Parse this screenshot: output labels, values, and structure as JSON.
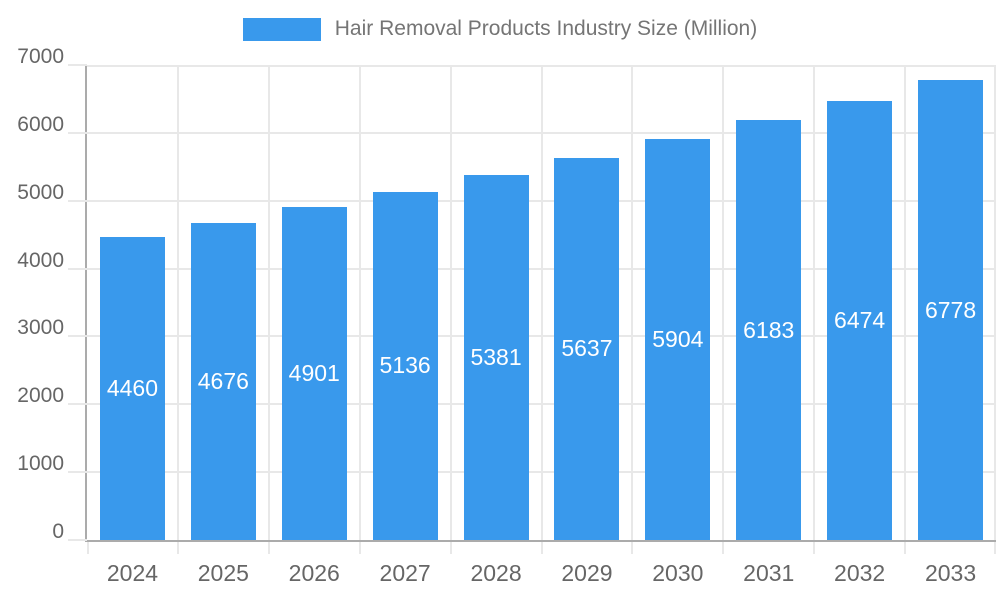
{
  "legend": {
    "series_label": "Hair Removal Products Industry Size (Million)"
  },
  "chart_data": {
    "type": "bar",
    "title": "Hair Removal Products Industry Size (Million)",
    "categories": [
      "2024",
      "2025",
      "2026",
      "2027",
      "2028",
      "2029",
      "2030",
      "2031",
      "2032",
      "2033"
    ],
    "values": [
      4460,
      4676,
      4901,
      5136,
      5381,
      5637,
      5904,
      6183,
      6474,
      6778
    ],
    "xlabel": "",
    "ylabel": "",
    "ylim": [
      0,
      7000
    ],
    "y_ticks": [
      0,
      1000,
      2000,
      3000,
      4000,
      5000,
      6000,
      7000
    ],
    "grid": true,
    "legend_position": "top",
    "bar_value_labels_visible": true,
    "colors": {
      "bar": "#3999EC",
      "bar_value_text": "#FFFFFF",
      "axis_line": "#ABABAB",
      "gridline": "#E8E8E8",
      "tick_text": "#666666",
      "legend_text": "#757575"
    }
  }
}
